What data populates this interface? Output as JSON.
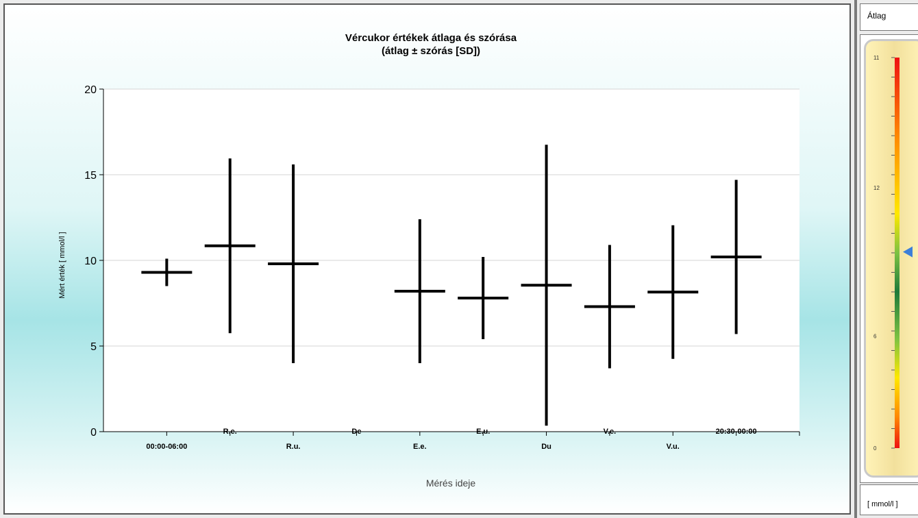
{
  "chart_data": {
    "type": "error-bar",
    "title": "Vércukor értékek átlaga és szórása",
    "subtitle": "(átlag ± szórás [SD])",
    "xlabel": "Mérés ideje",
    "ylabel": "Mért érték [ mmol/l ]",
    "ylim": [
      0,
      20
    ],
    "yticks": [
      "0",
      "5",
      "10",
      "15",
      "20"
    ],
    "grid": true,
    "categories": [
      "00:00-06:00",
      "R.e.",
      "R.u.",
      "De",
      "E.e.",
      "E.u.",
      "Du",
      "V.e.",
      "V.u.",
      "20:30-00:00"
    ],
    "series": [
      {
        "mean": [
          9.3,
          10.85,
          9.8,
          null,
          8.2,
          7.8,
          8.55,
          7.3,
          8.15,
          10.2
        ],
        "sd": [
          0.8,
          5.1,
          5.8,
          null,
          4.2,
          2.4,
          8.2,
          3.6,
          3.9,
          4.5
        ]
      }
    ]
  },
  "side_panel": {
    "header": "Átlag",
    "unit": "[ mmol/l ]",
    "gauge": {
      "scale_labels": [
        "11",
        "12",
        "6",
        "0"
      ],
      "marker_value": 9.4,
      "colors": [
        "#ee1111",
        "#ff8800",
        "#ffe800",
        "#7dc242",
        "#1e7a3a"
      ]
    }
  }
}
